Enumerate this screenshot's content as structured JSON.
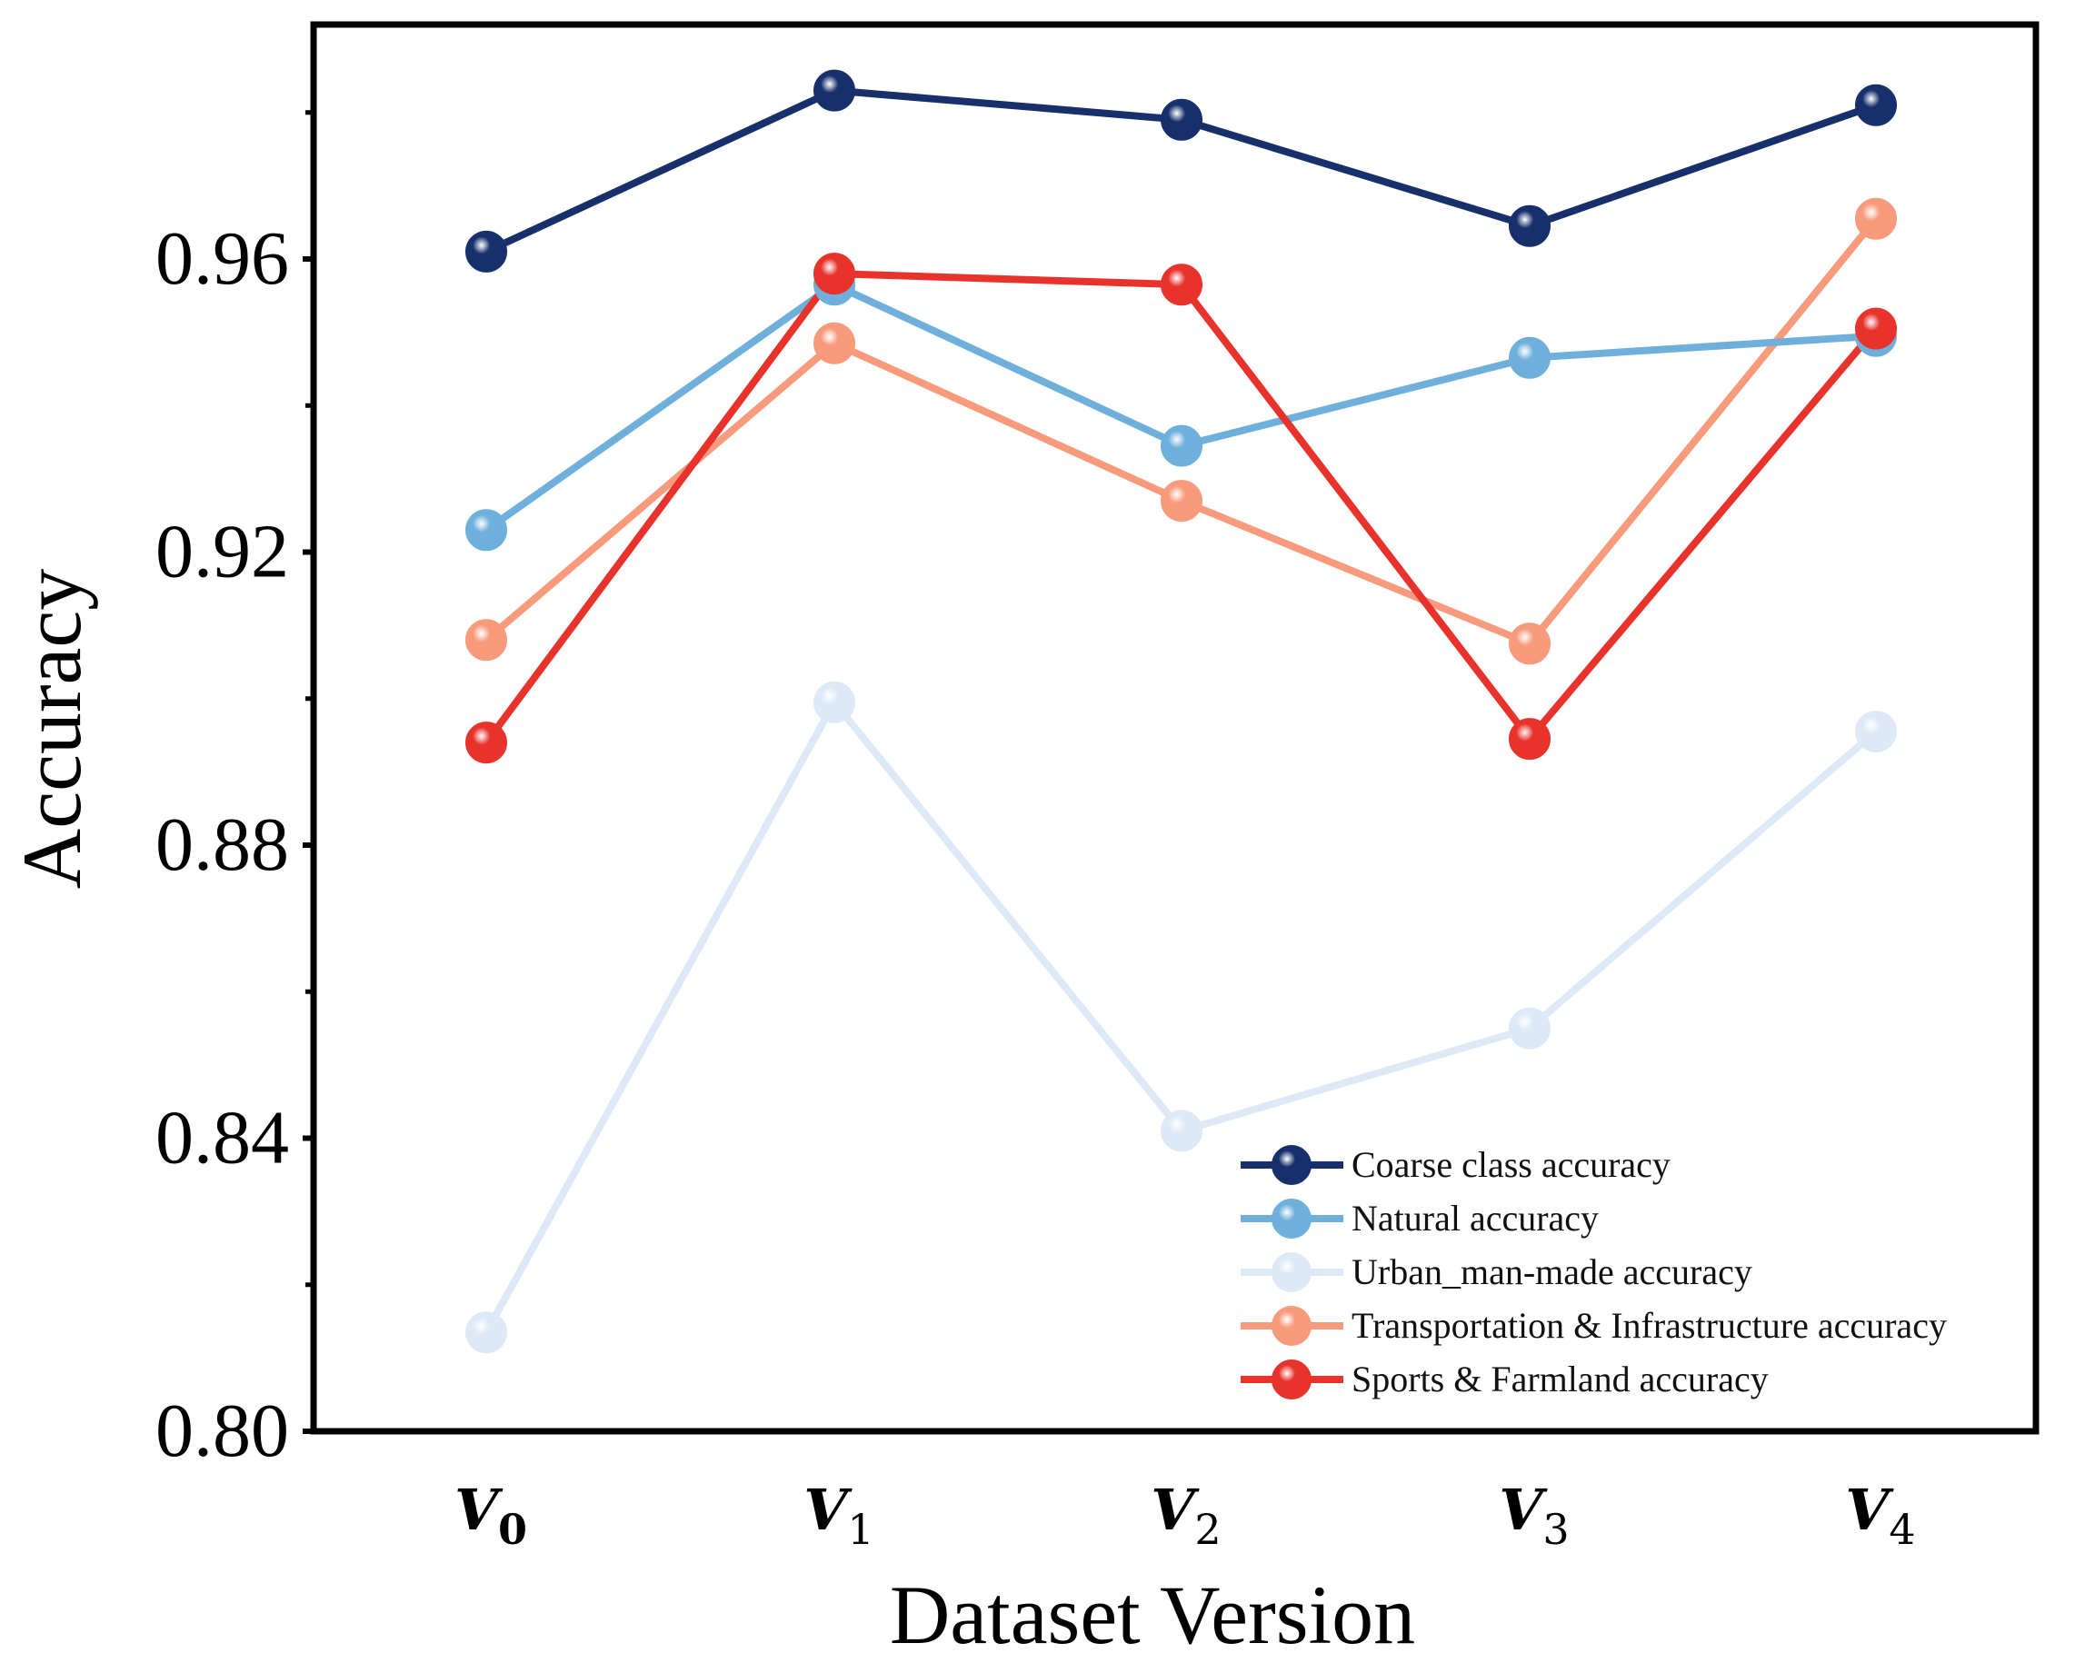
{
  "chart_data": {
    "type": "line",
    "xlabel": "Dataset Version",
    "ylabel": "Accuracy",
    "ylim": [
      0.8,
      0.992
    ],
    "y_ticks": [
      "0.80",
      "0.84",
      "0.88",
      "0.92",
      "0.96"
    ],
    "y_tick_values": [
      0.8,
      0.84,
      0.88,
      0.92,
      0.96
    ],
    "categories": [
      {
        "main": "V",
        "sub": "0"
      },
      {
        "main": "V",
        "sub": "1"
      },
      {
        "main": "V",
        "sub": "2"
      },
      {
        "main": "V",
        "sub": "3"
      },
      {
        "main": "V",
        "sub": "4"
      }
    ],
    "legend_position": "bottom-right",
    "grid": false,
    "series": [
      {
        "name": "Coarse class accuracy",
        "color": "#17306b",
        "values": [
          0.961,
          0.983,
          0.979,
          0.9645,
          0.981
        ]
      },
      {
        "name": "Natural accuracy",
        "color": "#6eb0db",
        "values": [
          0.923,
          0.9565,
          0.9345,
          0.9465,
          0.9495
        ]
      },
      {
        "name": "Urban_man-made accuracy",
        "color": "#dde9f6",
        "values": [
          0.8135,
          0.8995,
          0.841,
          0.855,
          0.8955
        ]
      },
      {
        "name": "Transportation & Infrastructure accuracy",
        "color": "#f79b7c",
        "values": [
          0.908,
          0.9485,
          0.927,
          0.9075,
          0.9655
        ]
      },
      {
        "name": "Sports & Farmland accuracy",
        "color": "#e8322c",
        "values": [
          0.894,
          0.958,
          0.9565,
          0.8945,
          0.9505
        ]
      }
    ]
  }
}
